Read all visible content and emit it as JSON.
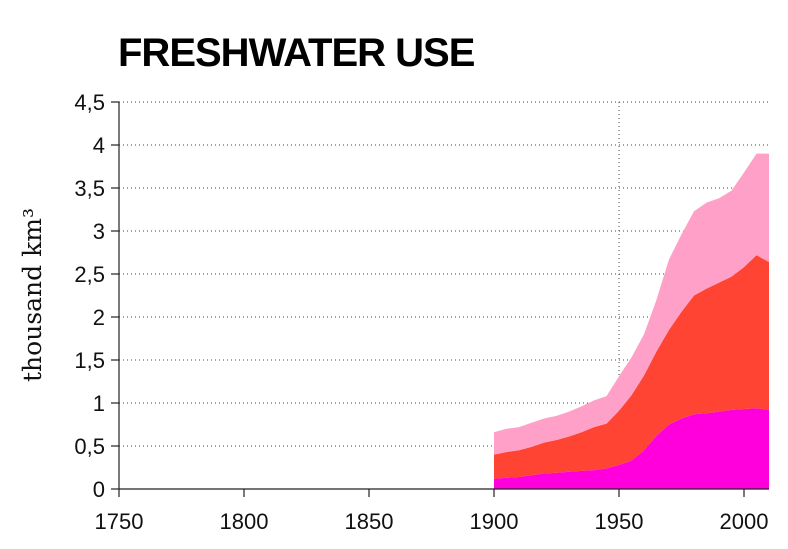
{
  "chart_data": {
    "type": "area",
    "stacked": true,
    "title": "FRESHWATER USE",
    "ylabel": "thousand km³",
    "xlim": [
      1750,
      2010
    ],
    "ylim": [
      0,
      4.5
    ],
    "xticks": [
      1750,
      1800,
      1850,
      1900,
      1950,
      2000
    ],
    "yticks": [
      0,
      0.5,
      1,
      1.5,
      2,
      2.5,
      3,
      3.5,
      4,
      4.5
    ],
    "ytick_labels": [
      "0",
      "0,5",
      "1",
      "1,5",
      "2",
      "2,5",
      "3",
      "3,5",
      "4",
      "4,5"
    ],
    "grid": "horizontal dotted; vertical dotted at 1950",
    "x": [
      1900,
      1905,
      1910,
      1915,
      1920,
      1925,
      1930,
      1935,
      1940,
      1945,
      1950,
      1955,
      1960,
      1965,
      1970,
      1975,
      1980,
      1985,
      1990,
      1995,
      2000,
      2005,
      2010
    ],
    "series": [
      {
        "color": "#ff00dd",
        "values": [
          0.12,
          0.13,
          0.14,
          0.16,
          0.18,
          0.19,
          0.2,
          0.21,
          0.22,
          0.24,
          0.28,
          0.33,
          0.45,
          0.62,
          0.75,
          0.82,
          0.87,
          0.88,
          0.9,
          0.92,
          0.93,
          0.94,
          0.92
        ]
      },
      {
        "color": "#ff4433",
        "values": [
          0.28,
          0.3,
          0.31,
          0.33,
          0.36,
          0.38,
          0.41,
          0.45,
          0.5,
          0.52,
          0.63,
          0.76,
          0.87,
          0.98,
          1.1,
          1.24,
          1.38,
          1.45,
          1.5,
          1.55,
          1.65,
          1.78,
          1.72
        ]
      },
      {
        "color": "#ffa0c8",
        "values": [
          0.26,
          0.27,
          0.27,
          0.28,
          0.28,
          0.28,
          0.29,
          0.3,
          0.31,
          0.32,
          0.4,
          0.44,
          0.48,
          0.6,
          0.82,
          0.9,
          0.98,
          1.0,
          0.98,
          1.0,
          1.1,
          1.18,
          1.26
        ]
      }
    ]
  }
}
